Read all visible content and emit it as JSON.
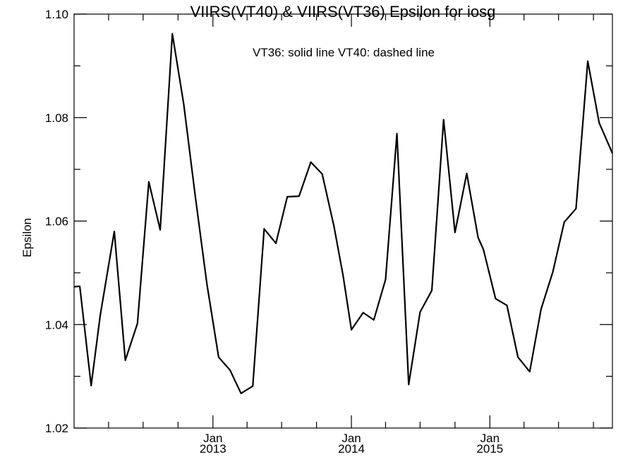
{
  "chart_data": {
    "type": "line",
    "title": "VIIRS(VT40) & VIIRS(VT36)  Epsilon for iosg",
    "annotation": "VT36: solid line   VT40: dashed line",
    "xlabel": "",
    "ylabel": "Epsilon",
    "xlim": [
      "2012-01-01",
      "2015-11-20"
    ],
    "ylim": [
      1.02,
      1.1
    ],
    "y_ticks": [
      "1.02",
      "1.04",
      "1.06",
      "1.08",
      "1.10"
    ],
    "x_ticks": [
      {
        "month": "Jan",
        "year": "2013",
        "date": "2013-01-01"
      },
      {
        "month": "Jan",
        "year": "2014",
        "date": "2014-01-01"
      },
      {
        "month": "Jan",
        "year": "2015",
        "date": "2015-01-01"
      }
    ],
    "grid": false,
    "series": [
      {
        "name": "VT36",
        "style": "solid",
        "color": "#000000",
        "points": [
          [
            "2012-01-01",
            1.0473
          ],
          [
            "2012-01-16",
            1.0474
          ],
          [
            "2012-02-15",
            1.0282
          ],
          [
            "2012-03-10",
            1.0418
          ],
          [
            "2012-04-16",
            1.058
          ],
          [
            "2012-05-15",
            1.0331
          ],
          [
            "2012-06-16",
            1.0402
          ],
          [
            "2012-07-16",
            1.0676
          ],
          [
            "2012-08-15",
            1.0583
          ],
          [
            "2012-09-16",
            1.0962
          ],
          [
            "2012-10-16",
            1.0826
          ],
          [
            "2012-11-16",
            1.0645
          ],
          [
            "2012-12-16",
            1.0479
          ],
          [
            "2013-01-16",
            1.0337
          ],
          [
            "2013-02-15",
            1.0312
          ],
          [
            "2013-03-16",
            1.0267
          ],
          [
            "2013-04-16",
            1.0281
          ],
          [
            "2013-05-16",
            1.0585
          ],
          [
            "2013-06-16",
            1.0557
          ],
          [
            "2013-07-16",
            1.0647
          ],
          [
            "2013-08-16",
            1.0648
          ],
          [
            "2013-09-16",
            1.0714
          ],
          [
            "2013-10-16",
            1.0691
          ],
          [
            "2013-11-16",
            1.059
          ],
          [
            "2013-12-10",
            1.0495
          ],
          [
            "2014-01-01",
            1.039
          ],
          [
            "2014-02-01",
            1.0423
          ],
          [
            "2014-03-01",
            1.0409
          ],
          [
            "2014-04-01",
            1.0487
          ],
          [
            "2014-05-01",
            1.0769
          ],
          [
            "2014-06-01",
            1.0284
          ],
          [
            "2014-07-01",
            1.0424
          ],
          [
            "2014-08-01",
            1.0466
          ],
          [
            "2014-09-01",
            1.0796
          ],
          [
            "2014-10-01",
            1.0578
          ],
          [
            "2014-11-01",
            1.0692
          ],
          [
            "2014-12-01",
            1.0568
          ],
          [
            "2014-12-15",
            1.0545
          ],
          [
            "2015-01-16",
            1.045
          ],
          [
            "2015-02-15",
            1.0437
          ],
          [
            "2015-03-16",
            1.0337
          ],
          [
            "2015-04-16",
            1.0309
          ],
          [
            "2015-05-16",
            1.043
          ],
          [
            "2015-06-16",
            1.0502
          ],
          [
            "2015-07-16",
            1.0598
          ],
          [
            "2015-08-16",
            1.0624
          ],
          [
            "2015-09-16",
            1.0909
          ],
          [
            "2015-10-16",
            1.079
          ],
          [
            "2015-11-20",
            1.0731
          ]
        ]
      }
    ]
  }
}
